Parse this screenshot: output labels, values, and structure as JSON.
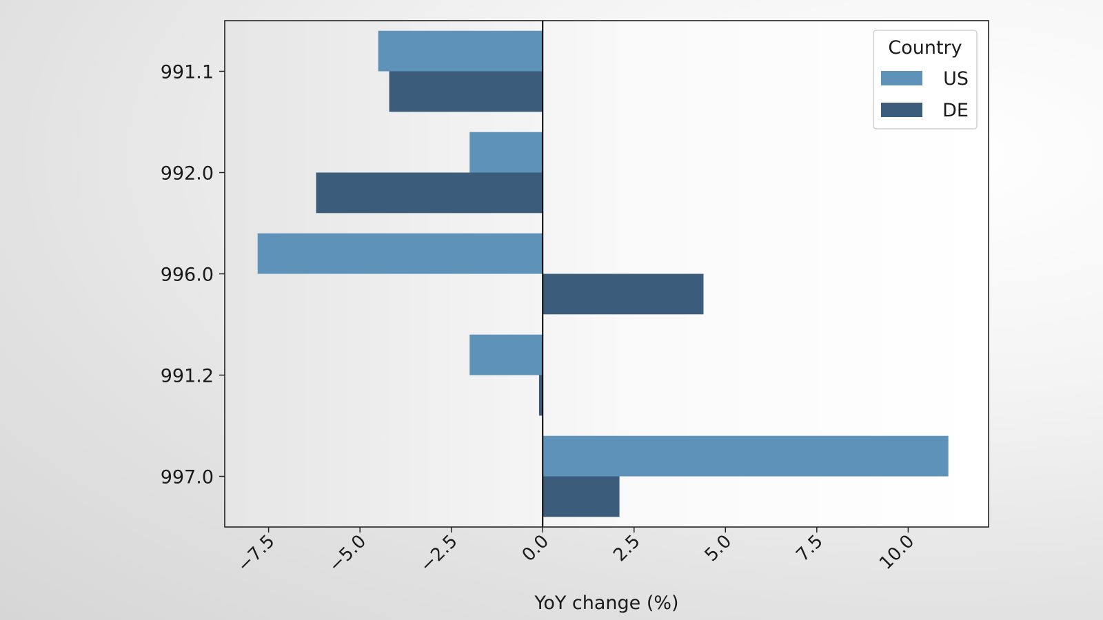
{
  "chart_data": {
    "type": "bar",
    "orientation": "horizontal",
    "categories": [
      "991.1",
      "992.0",
      "996.0",
      "991.2",
      "997.0"
    ],
    "series": [
      {
        "name": "US",
        "color": "#5f92b8",
        "values": [
          -4.5,
          -2.0,
          -7.8,
          -2.0,
          11.1
        ]
      },
      {
        "name": "DE",
        "color": "#3b5c7a",
        "values": [
          -4.2,
          -6.2,
          4.4,
          -0.1,
          2.1
        ]
      }
    ],
    "xlabel": "YoY change (%)",
    "ylabel": "",
    "xlim": [
      -8.7,
      12.2
    ],
    "xticks": [
      -7.5,
      -5.0,
      -2.5,
      0.0,
      2.5,
      5.0,
      7.5,
      10.0
    ],
    "xtick_labels": [
      "−7.5",
      "−5.0",
      "−2.5",
      "0.0",
      "2.5",
      "5.0",
      "7.5",
      "10.0"
    ],
    "reference_line": 0,
    "grid": false,
    "legend": {
      "title": "Country",
      "position": "top-right"
    }
  }
}
